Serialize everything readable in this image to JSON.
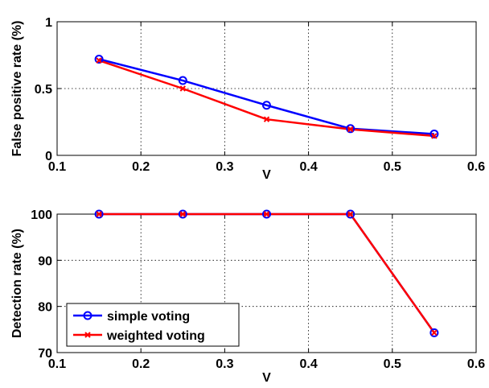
{
  "chart_data": [
    {
      "type": "line",
      "xlabel": "V",
      "ylabel": "False positive rate (%)",
      "xlim": [
        0.1,
        0.6
      ],
      "ylim": [
        0,
        1
      ],
      "xticks": [
        "0.1",
        "0.2",
        "0.3",
        "0.4",
        "0.5",
        "0.6"
      ],
      "yticks": [
        "0",
        "0.5",
        "1"
      ],
      "grid": true,
      "x": [
        0.15,
        0.25,
        0.35,
        0.45,
        0.55
      ],
      "series": [
        {
          "name": "simple voting",
          "color": "#0000ff",
          "marker": "circle",
          "values": [
            0.72,
            0.56,
            0.375,
            0.2,
            0.16
          ]
        },
        {
          "name": "weighted voting",
          "color": "#ff0000",
          "marker": "x",
          "values": [
            0.71,
            0.5,
            0.27,
            0.195,
            0.145
          ]
        }
      ]
    },
    {
      "type": "line",
      "xlabel": "V",
      "ylabel": "Detection rate (%)",
      "xlim": [
        0.1,
        0.6
      ],
      "ylim": [
        70,
        100
      ],
      "xticks": [
        "0.1",
        "0.2",
        "0.3",
        "0.4",
        "0.5",
        "0.6"
      ],
      "yticks": [
        "70",
        "80",
        "90",
        "100"
      ],
      "grid": true,
      "legend_position": "bottom-left",
      "x": [
        0.15,
        0.25,
        0.35,
        0.45,
        0.55
      ],
      "series": [
        {
          "name": "simple voting",
          "color": "#0000ff",
          "marker": "circle",
          "values": [
            100,
            100,
            100,
            100,
            74.3
          ]
        },
        {
          "name": "weighted voting",
          "color": "#ff0000",
          "marker": "x",
          "values": [
            100,
            100,
            100,
            100,
            74.3
          ]
        }
      ]
    }
  ]
}
